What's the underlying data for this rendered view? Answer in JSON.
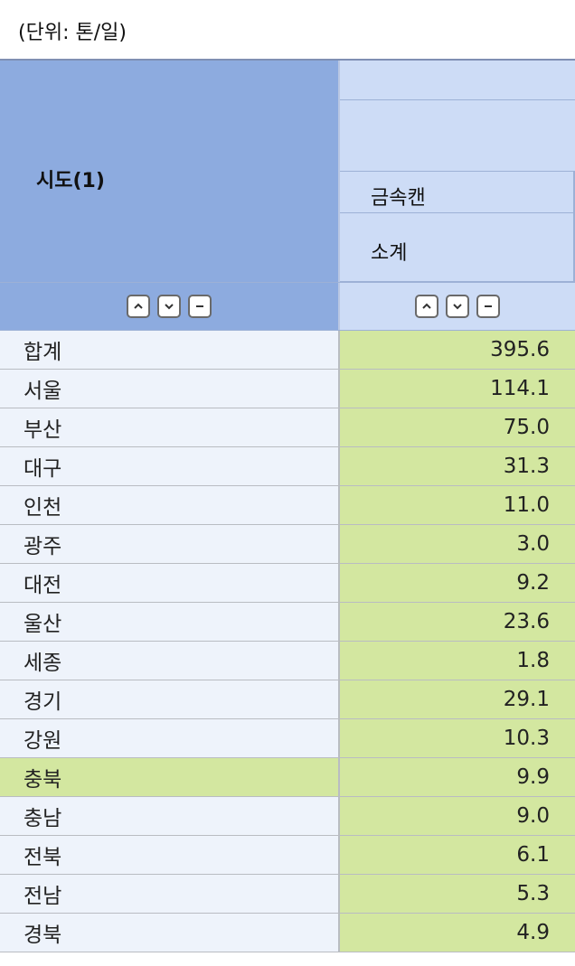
{
  "unit_label": "(단위: 톤/일)",
  "header": {
    "row_header": "시도(1)",
    "col_group": "금속캔",
    "col_sub": "소계"
  },
  "controls": {
    "icons": [
      "expand-up-icon",
      "expand-down-icon",
      "collapse-icon"
    ]
  },
  "colors": {
    "header_bg": "#8dabdf",
    "subheader_bg": "#cddcf6",
    "row_bg": "#eef3fb",
    "value_bg": "#d3e7a0"
  },
  "rows": [
    {
      "name": "합계",
      "value": "395.6"
    },
    {
      "name": "서울",
      "value": "114.1"
    },
    {
      "name": "부산",
      "value": "75.0"
    },
    {
      "name": "대구",
      "value": "31.3"
    },
    {
      "name": "인천",
      "value": "11.0"
    },
    {
      "name": "광주",
      "value": "3.0"
    },
    {
      "name": "대전",
      "value": "9.2"
    },
    {
      "name": "울산",
      "value": "23.6"
    },
    {
      "name": "세종",
      "value": "1.8"
    },
    {
      "name": "경기",
      "value": "29.1"
    },
    {
      "name": "강원",
      "value": "10.3"
    },
    {
      "name": "충북",
      "value": "9.9"
    },
    {
      "name": "충남",
      "value": "9.0"
    },
    {
      "name": "전북",
      "value": "6.1"
    },
    {
      "name": "전남",
      "value": "5.3"
    },
    {
      "name": "경북",
      "value": "4.9"
    }
  ]
}
